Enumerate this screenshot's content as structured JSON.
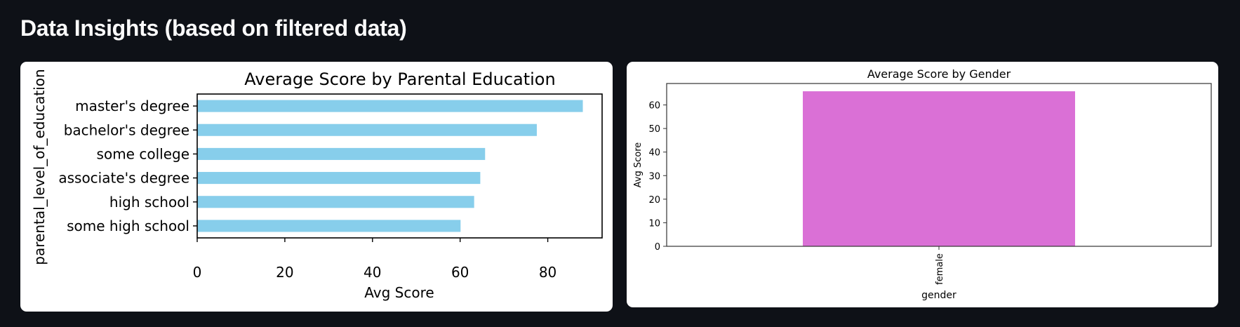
{
  "header": {
    "title": "Data Insights (based on filtered data)"
  },
  "colors": {
    "bar_left": "#87ceeb",
    "bar_right": "#da70d6"
  },
  "chart_data": [
    {
      "type": "bar",
      "orientation": "horizontal",
      "title": "Average Score by Parental Education",
      "xlabel": "Avg Score",
      "ylabel": "parental_level_of_education",
      "categories": [
        "master's degree",
        "bachelor's degree",
        "some college",
        "associate's degree",
        "high school",
        "some high school"
      ],
      "values": [
        88,
        77.5,
        65.7,
        64.6,
        63.2,
        60.1
      ],
      "xlim": [
        0,
        92.4
      ],
      "xticks": [
        0,
        20,
        40,
        60,
        80
      ],
      "grid": false
    },
    {
      "type": "bar",
      "orientation": "vertical",
      "title": "Average Score by Gender",
      "xlabel": "gender",
      "ylabel": "Avg Score",
      "categories": [
        "female"
      ],
      "values": [
        65.8
      ],
      "ylim": [
        0,
        69.1
      ],
      "yticks": [
        0,
        10,
        20,
        30,
        40,
        50,
        60
      ],
      "grid": false
    }
  ]
}
